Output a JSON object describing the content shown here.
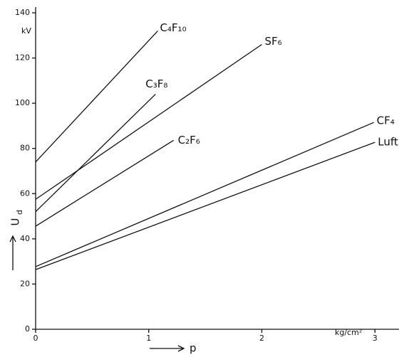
{
  "chart_data": {
    "type": "line",
    "ylabel": {
      "main": "U",
      "sub": "d"
    },
    "yunit": "kV",
    "xlabel": "p",
    "xunit": "kg/cm²",
    "xlim": [
      0,
      3.2
    ],
    "ylim": [
      0,
      140
    ],
    "xticks": [
      0,
      1,
      2,
      3
    ],
    "yticks": [
      0,
      20,
      40,
      60,
      80,
      100,
      120,
      140
    ],
    "series": [
      {
        "name": "C₄F₁₀",
        "color": "#111",
        "x": [
          0,
          1.08
        ],
        "values": [
          74,
          132
        ]
      },
      {
        "name": "SF₆",
        "color": "#111",
        "x": [
          0,
          2.0
        ],
        "values": [
          57.5,
          126
        ]
      },
      {
        "name": "C₃F₈",
        "color": "#111",
        "x": [
          0,
          1.06
        ],
        "values": [
          52,
          104
        ]
      },
      {
        "name": "C₂F₆",
        "color": "#111",
        "x": [
          0,
          1.22
        ],
        "values": [
          45.6,
          83.6
        ]
      },
      {
        "name": "CF₄",
        "color": "#111",
        "x": [
          0,
          2.99
        ],
        "values": [
          27.7,
          91.5
        ]
      },
      {
        "name": "Luft",
        "color": "#111",
        "x": [
          0,
          3.0
        ],
        "values": [
          26.4,
          82.7
        ]
      }
    ]
  }
}
